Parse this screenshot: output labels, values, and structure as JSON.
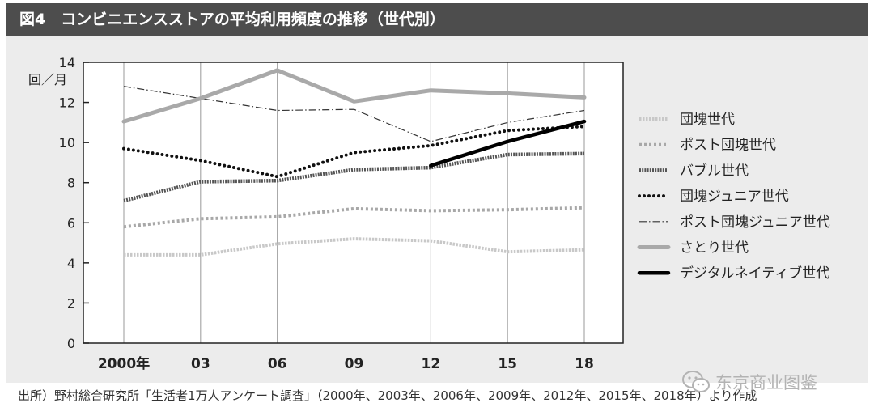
{
  "figure": {
    "title": "図4　コンビニエンスストアの平均利用頻度の推移（世代別）",
    "source": "出所）野村総合研究所「生活者1万人アンケート調査」（2000年、2003年、2006年、2009年、2012年、2015年、2018年）より作成",
    "watermark": "东京商业图鉴",
    "watermark_icon": "wechat-icon"
  },
  "chart_data": {
    "type": "line",
    "title": "コンビニエンスストアの平均利用頻度の推移（世代別）",
    "ylabel": "回／月",
    "xlabel": "",
    "categories": [
      "2000年",
      "03",
      "06",
      "09",
      "12",
      "15",
      "18"
    ],
    "yticks": [
      "0",
      "2",
      "4",
      "6",
      "8",
      "10",
      "12",
      "14"
    ],
    "ylim": [
      0,
      14
    ],
    "grid": "vertical",
    "legend_position": "right",
    "series": [
      {
        "name": "団塊世代",
        "style": "dotted-light",
        "color": "#c8c8c8",
        "values": [
          4.4,
          4.4,
          4.95,
          5.2,
          5.1,
          4.55,
          4.65
        ]
      },
      {
        "name": "ポスト団塊世代",
        "style": "dotted-medium",
        "color": "#a8a8a8",
        "values": [
          5.8,
          6.2,
          6.3,
          6.7,
          6.6,
          6.65,
          6.75
        ]
      },
      {
        "name": "バブル世代",
        "style": "dotted-dark",
        "color": "#555555",
        "values": [
          7.1,
          8.05,
          8.1,
          8.65,
          8.75,
          9.4,
          9.45
        ]
      },
      {
        "name": "団塊ジュニア世代",
        "style": "dotted-black",
        "color": "#111111",
        "values": [
          9.7,
          9.1,
          8.3,
          9.5,
          9.85,
          10.6,
          10.8
        ]
      },
      {
        "name": "ポスト団塊ジュニア世代",
        "style": "dash-dot",
        "color": "#333333",
        "values": [
          12.8,
          12.2,
          11.6,
          11.65,
          10.05,
          11.0,
          11.6
        ]
      },
      {
        "name": "さとり世代",
        "style": "thick-gray",
        "color": "#a9a9a9",
        "values": [
          11.05,
          12.2,
          13.6,
          12.05,
          12.6,
          12.45,
          12.25
        ]
      },
      {
        "name": "デジタルネイティブ世代",
        "style": "thick-black",
        "color": "#000000",
        "values": [
          null,
          null,
          null,
          null,
          8.85,
          10.05,
          11.05
        ]
      }
    ]
  }
}
